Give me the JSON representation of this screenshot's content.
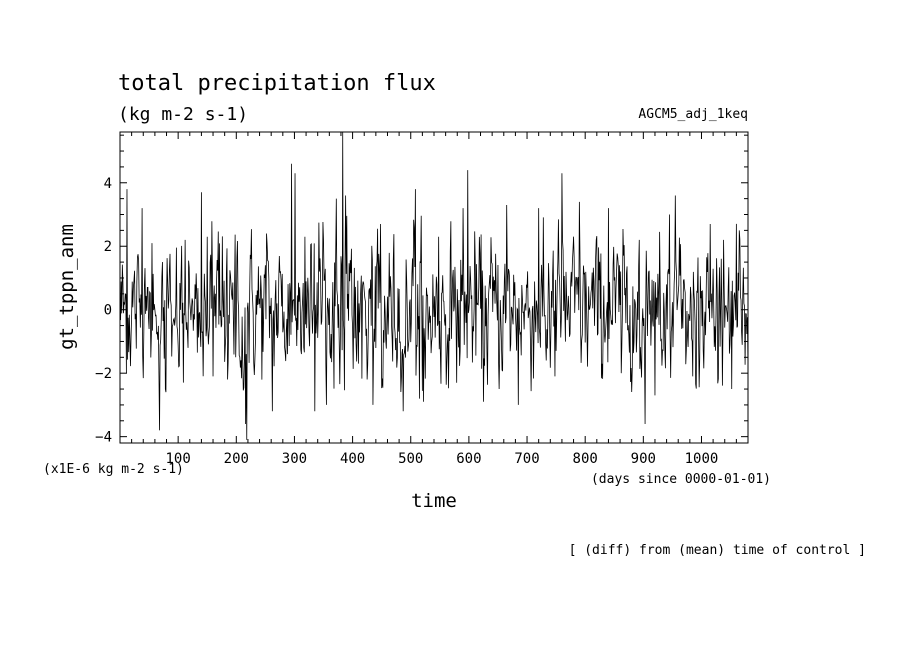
{
  "chart_data": {
    "type": "line",
    "title": "total precipitation flux",
    "units_label": "(kg m-2 s-1)",
    "experiment_label": "AGCM5_adj_1keq",
    "ylabel": "gt_tppn_anm",
    "xlabel": "time",
    "y_scale_note": "(x1E-6 kg m-2 s-1)",
    "x_unit_note": "(days since 0000-01-01)",
    "footnote": "[ (diff) from (mean) time of control ]",
    "xlim": [
      0,
      1080
    ],
    "ylim": [
      -4.2,
      5.6
    ],
    "x_ticks": [
      100,
      200,
      300,
      400,
      500,
      600,
      700,
      800,
      900,
      1000
    ],
    "x_tick_labels": [
      "100",
      "200",
      "300",
      "400",
      "500",
      "600",
      "700",
      "800",
      "900",
      "1000"
    ],
    "y_ticks": [
      -4,
      -2,
      0,
      2,
      4
    ],
    "y_tick_labels": [
      "−4",
      "−2",
      "0",
      "2",
      "4"
    ],
    "grid": false,
    "line_color": "#000000",
    "series": [
      {
        "x_step": 1,
        "x_start": 1,
        "n_points": 1080,
        "peaks": [
          {
            "x": 12,
            "y": 3.8
          },
          {
            "x": 38,
            "y": 3.2
          },
          {
            "x": 55,
            "y": 2.1
          },
          {
            "x": 68,
            "y": -3.8
          },
          {
            "x": 78,
            "y": -2.5
          },
          {
            "x": 112,
            "y": 2.2
          },
          {
            "x": 140,
            "y": 3.7
          },
          {
            "x": 150,
            "y": 2.3
          },
          {
            "x": 160,
            "y": -2.1
          },
          {
            "x": 185,
            "y": -2.2
          },
          {
            "x": 216,
            "y": -3.6
          },
          {
            "x": 218,
            "y": -4.1
          },
          {
            "x": 252,
            "y": 2.4
          },
          {
            "x": 262,
            "y": -3.2
          },
          {
            "x": 288,
            "y": -1.4
          },
          {
            "x": 295,
            "y": 4.6
          },
          {
            "x": 301,
            "y": 4.3
          },
          {
            "x": 318,
            "y": 2.3
          },
          {
            "x": 335,
            "y": -3.2
          },
          {
            "x": 355,
            "y": -3.0
          },
          {
            "x": 372,
            "y": 3.5
          },
          {
            "x": 383,
            "y": 5.6
          },
          {
            "x": 388,
            "y": 3.6
          },
          {
            "x": 410,
            "y": -1.7
          },
          {
            "x": 435,
            "y": -3.0
          },
          {
            "x": 448,
            "y": 2.7
          },
          {
            "x": 487,
            "y": -3.2
          },
          {
            "x": 508,
            "y": 3.8
          },
          {
            "x": 515,
            "y": -2.8
          },
          {
            "x": 522,
            "y": -2.9
          },
          {
            "x": 548,
            "y": 2.3
          },
          {
            "x": 590,
            "y": 3.2
          },
          {
            "x": 598,
            "y": 4.4
          },
          {
            "x": 625,
            "y": -2.9
          },
          {
            "x": 665,
            "y": 3.3
          },
          {
            "x": 685,
            "y": -3.0
          },
          {
            "x": 720,
            "y": 3.2
          },
          {
            "x": 748,
            "y": -2.1
          },
          {
            "x": 760,
            "y": 4.3
          },
          {
            "x": 790,
            "y": 3.4
          },
          {
            "x": 840,
            "y": 3.2
          },
          {
            "x": 862,
            "y": -2.0
          },
          {
            "x": 893,
            "y": 2.2
          },
          {
            "x": 903,
            "y": -3.6
          },
          {
            "x": 920,
            "y": -2.7
          },
          {
            "x": 945,
            "y": 3.0
          },
          {
            "x": 955,
            "y": 3.6
          },
          {
            "x": 985,
            "y": -2.1
          },
          {
            "x": 1015,
            "y": 2.7
          },
          {
            "x": 1038,
            "y": 2.2
          },
          {
            "x": 1052,
            "y": -2.5
          },
          {
            "x": 1065,
            "y": 2.5
          }
        ],
        "noise_sd": 1.05
      }
    ]
  }
}
